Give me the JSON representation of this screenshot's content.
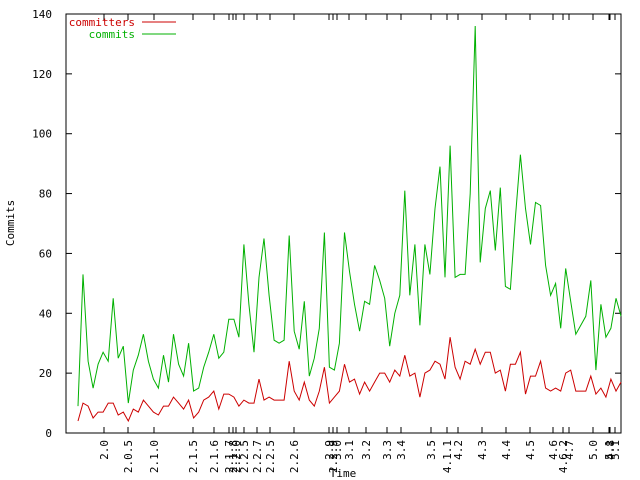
{
  "chart_data": {
    "type": "line",
    "title": "",
    "xlabel": "Time",
    "ylabel": "Commits",
    "ylim": [
      0,
      140
    ],
    "yticks": [
      0,
      20,
      40,
      60,
      80,
      100,
      120,
      140
    ],
    "legend_position": "top-left",
    "xtick_labels": [
      "2.0",
      "2.0.5",
      "2.1.0",
      "2.1.5",
      "2.1.6",
      "2.1.7",
      "2.1.8",
      "2.2.0",
      "2.2.5",
      "2.2.7",
      "2.2.5",
      "2.2.6",
      "2.9",
      "2.2.9",
      "3.0",
      "3.1",
      "3.2",
      "3.3",
      "3.4",
      "3.5",
      "4.1.1",
      "4.2",
      "4.3",
      "4.4",
      "4.5",
      "4.6",
      "4.6.2",
      "4.7",
      "5.0",
      "5.1",
      "4.8",
      "5.1"
    ],
    "series": [
      {
        "name": "committers",
        "color": "#cc0000",
        "values": [
          4,
          10,
          9,
          5,
          7,
          7,
          10,
          10,
          6,
          7,
          4,
          8,
          7,
          11,
          9,
          7,
          6,
          9,
          9,
          12,
          10,
          8,
          11,
          5,
          7,
          11,
          12,
          14,
          8,
          13,
          13,
          12,
          9,
          11,
          10,
          10,
          18,
          11,
          12,
          11,
          11,
          11,
          24,
          14,
          11,
          17,
          11,
          9,
          14,
          22,
          10,
          12,
          14,
          23,
          17,
          18,
          13,
          17,
          14,
          17,
          20,
          20,
          17,
          21,
          19,
          26,
          19,
          20,
          12,
          20,
          21,
          24,
          23,
          18,
          32,
          22,
          18,
          24,
          23,
          28,
          23,
          27,
          27,
          20,
          21,
          14,
          23,
          23,
          27,
          13,
          19,
          19,
          24,
          15,
          14,
          15,
          14,
          20,
          21,
          14,
          14,
          14,
          19,
          13,
          15,
          12,
          18,
          14,
          17
        ]
      },
      {
        "name": "commits",
        "color": "#00b000",
        "values": [
          9,
          53,
          24,
          15,
          23,
          27,
          24,
          45,
          25,
          29,
          10,
          21,
          26,
          33,
          24,
          18,
          15,
          26,
          17,
          33,
          23,
          19,
          30,
          14,
          15,
          22,
          27,
          33,
          25,
          27,
          38,
          38,
          32,
          63,
          43,
          27,
          52,
          65,
          46,
          31,
          30,
          31,
          66,
          34,
          28,
          44,
          19,
          25,
          35,
          67,
          22,
          21,
          30,
          67,
          54,
          43,
          34,
          44,
          43,
          56,
          51,
          45,
          29,
          40,
          46,
          81,
          46,
          63,
          36,
          63,
          53,
          75,
          89,
          52,
          96,
          52,
          53,
          53,
          80,
          136,
          57,
          75,
          81,
          61,
          82,
          49,
          48,
          72,
          93,
          75,
          63,
          77,
          76,
          56,
          46,
          50,
          35,
          55,
          44,
          33,
          36,
          39,
          51,
          21,
          43,
          32,
          35,
          45,
          39
        ]
      }
    ]
  }
}
